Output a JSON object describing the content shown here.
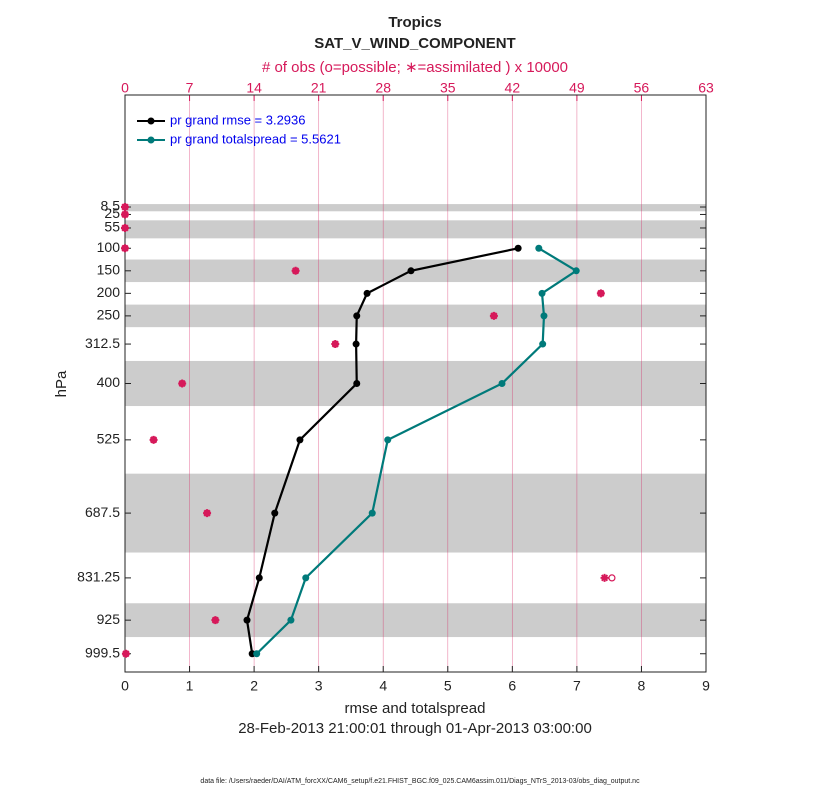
{
  "chart_data": {
    "type": "profile",
    "title": "Tropics",
    "subtitle": "SAT_V_WIND_COMPONENT",
    "x2label": "# of obs (o=possible; ∗=assimilated ) x 10000",
    "xlabel": "rmse and totalspread",
    "ylabel": "hPa",
    "period": "28-Feb-2013 21:00:01 through 01-Apr-2013 03:00:00",
    "footnote": "data file: /Users/raeder/DAI/ATM_forcXX/CAM6_setup/f.e21.FHIST_BGC.f09_025.CAM6assim.011/Diags_NTrS_2013-03/obs_diag_output.nc",
    "levels": [
      8.5,
      25,
      55,
      100,
      150,
      200,
      250,
      312.5,
      400,
      525,
      687.5,
      831.25,
      925,
      999.5
    ],
    "xlim": [
      0,
      9
    ],
    "xticks": [
      0,
      1,
      2,
      3,
      4,
      5,
      6,
      7,
      8,
      9
    ],
    "x2lim": [
      0,
      63
    ],
    "x2ticks": [
      0,
      7,
      14,
      21,
      28,
      35,
      42,
      49,
      56,
      63
    ],
    "ylim": [
      1040,
      -240
    ],
    "yticks": [
      8.5,
      25,
      55,
      100,
      150,
      200,
      250,
      312.5,
      400,
      525,
      687.5,
      831.25,
      925,
      999.5
    ],
    "shaded_layers": [
      [
        2,
        18
      ],
      [
        38,
        78
      ],
      [
        125,
        175
      ],
      [
        225,
        275
      ],
      [
        350,
        450
      ],
      [
        600,
        775
      ],
      [
        887.5,
        962.5
      ]
    ],
    "grid": true,
    "legend": "upper-left",
    "series": [
      {
        "name": "pr grand rmse = 3.2936",
        "color": "#000000",
        "values": [
          null,
          null,
          null,
          6.09,
          4.43,
          3.75,
          3.59,
          3.58,
          3.59,
          2.71,
          2.32,
          2.08,
          1.89,
          1.97
        ]
      },
      {
        "name": "pr grand totalspread = 5.5621",
        "color": "#007a7a",
        "values": [
          null,
          null,
          null,
          6.41,
          6.99,
          6.46,
          6.49,
          6.47,
          5.84,
          4.07,
          3.83,
          2.8,
          2.57,
          2.04
        ]
      }
    ],
    "obs_color": "#d6195a",
    "obs_possible": [
      0,
      0,
      0,
      0,
      18.5,
      51.6,
      40.0,
      22.8,
      6.2,
      3.1,
      8.9,
      52.8,
      9.8,
      0.1
    ],
    "obs_assimilated": [
      0,
      0,
      0,
      0,
      18.5,
      51.6,
      40.0,
      22.8,
      6.2,
      3.1,
      8.9,
      52.0,
      9.8,
      0.1
    ]
  }
}
